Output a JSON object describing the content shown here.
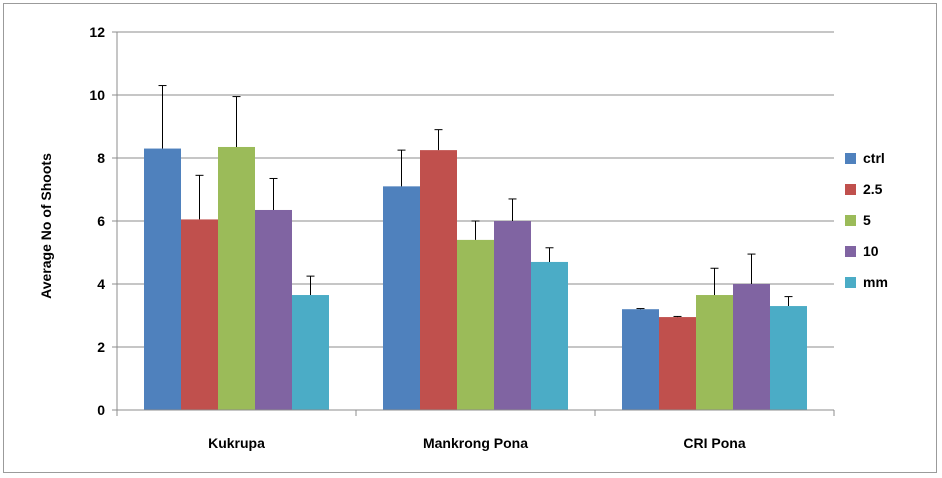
{
  "chart_data": {
    "type": "bar",
    "title": "",
    "xlabel": "",
    "ylabel": "Average No of Shoots",
    "ylim": [
      0,
      12
    ],
    "yticks": [
      0,
      2,
      4,
      6,
      8,
      10,
      12
    ],
    "grid": true,
    "legend_position": "right",
    "categories": [
      "Kukrupa",
      "Mankrong Pona",
      "CRI Pona"
    ],
    "series": [
      {
        "name": "ctrl",
        "color": "#4f81bd",
        "values": [
          8.3,
          7.1,
          3.2
        ],
        "errors": [
          2.0,
          1.15,
          0.02
        ]
      },
      {
        "name": "2.5",
        "color": "#c0504d",
        "values": [
          6.05,
          8.25,
          2.95
        ],
        "errors": [
          1.4,
          0.65,
          0.02
        ]
      },
      {
        "name": "5",
        "color": "#9bbb59",
        "values": [
          8.35,
          5.4,
          3.65
        ],
        "errors": [
          1.6,
          0.6,
          0.85
        ]
      },
      {
        "name": "10",
        "color": "#8064a2",
        "values": [
          6.35,
          6.0,
          4.0
        ],
        "errors": [
          1.0,
          0.7,
          0.95
        ]
      },
      {
        "name": "mm",
        "color": "#4bacc6",
        "values": [
          3.65,
          4.7,
          3.3
        ],
        "errors": [
          0.6,
          0.45,
          0.3
        ]
      }
    ]
  }
}
